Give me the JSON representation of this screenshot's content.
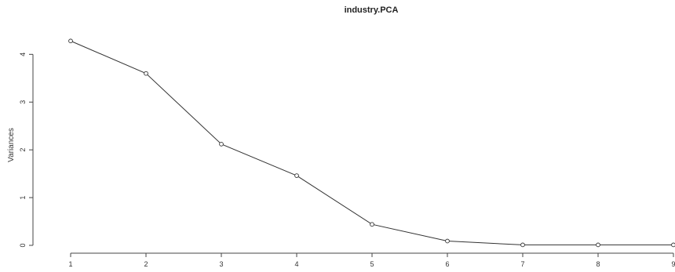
{
  "chart_data": {
    "type": "line",
    "title": "industry.PCA",
    "xlabel": "",
    "ylabel": "Variances",
    "x": [
      1,
      2,
      3,
      4,
      5,
      6,
      7,
      8,
      9
    ],
    "values": [
      4.28,
      3.6,
      2.12,
      1.46,
      0.44,
      0.09,
      0.01,
      0.01,
      0.01
    ],
    "yticks": [
      0,
      1,
      2,
      3,
      4
    ],
    "xticks": [
      1,
      2,
      3,
      4,
      5,
      6,
      7,
      8,
      9
    ],
    "ylim": [
      0,
      4.35
    ],
    "xlim": [
      1,
      9
    ],
    "grid": false,
    "colors": {
      "line": "#333333",
      "marker": "#333333",
      "axis": "#444444",
      "text": "#333333"
    }
  }
}
